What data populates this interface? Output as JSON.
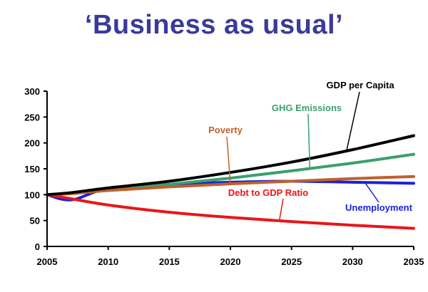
{
  "chart_data": {
    "type": "line",
    "title": "‘Business as usual’",
    "xlabel": "",
    "ylabel": "",
    "xlim": [
      2005,
      2035
    ],
    "ylim": [
      0,
      300
    ],
    "x_ticks": [
      2005,
      2010,
      2015,
      2020,
      2025,
      2030,
      2035
    ],
    "y_ticks": [
      0,
      50,
      100,
      150,
      200,
      250,
      300
    ],
    "grid": false,
    "legend": "none",
    "x": [
      2005,
      2007,
      2010,
      2015,
      2020,
      2025,
      2030,
      2035
    ],
    "series": [
      {
        "name": "GDP per Capita",
        "color": "#000000",
        "values": [
          100,
          104,
          113,
          126,
          143,
          163,
          187,
          214
        ]
      },
      {
        "name": "GHG Emissions",
        "color": "#3aa06e",
        "values": [
          100,
          103,
          110,
          120,
          132,
          146,
          161,
          178
        ]
      },
      {
        "name": "Poverty",
        "color": "#c0602a",
        "values": [
          100,
          102,
          108,
          115,
          121,
          126,
          131,
          135
        ]
      },
      {
        "name": "Debt to GDP Ratio",
        "color": "#e8161a",
        "values": [
          100,
          92,
          80,
          66,
          56,
          48,
          41,
          35
        ]
      },
      {
        "name": "Unemployment",
        "color": "#1a22d8",
        "values": [
          100,
          90,
          112,
          120,
          124,
          126,
          124,
          122
        ]
      }
    ],
    "annotations": [
      {
        "text": "GDP per Capita",
        "color": "#000000",
        "series": "GDP per Capita",
        "at_x": 2029.5
      },
      {
        "text": "GHG Emissions",
        "color": "#3aa06e",
        "series": "GHG Emissions",
        "at_x": 2026.5
      },
      {
        "text": "Poverty",
        "color": "#c0602a",
        "series": "Poverty",
        "at_x": 2020
      },
      {
        "text": "Debt to GDP Ratio",
        "color": "#e8161a",
        "series": "Debt to GDP Ratio",
        "at_x": 2024
      },
      {
        "text": "Unemployment",
        "color": "#1a22d8",
        "series": "Unemployment",
        "at_x": 2031
      }
    ]
  }
}
